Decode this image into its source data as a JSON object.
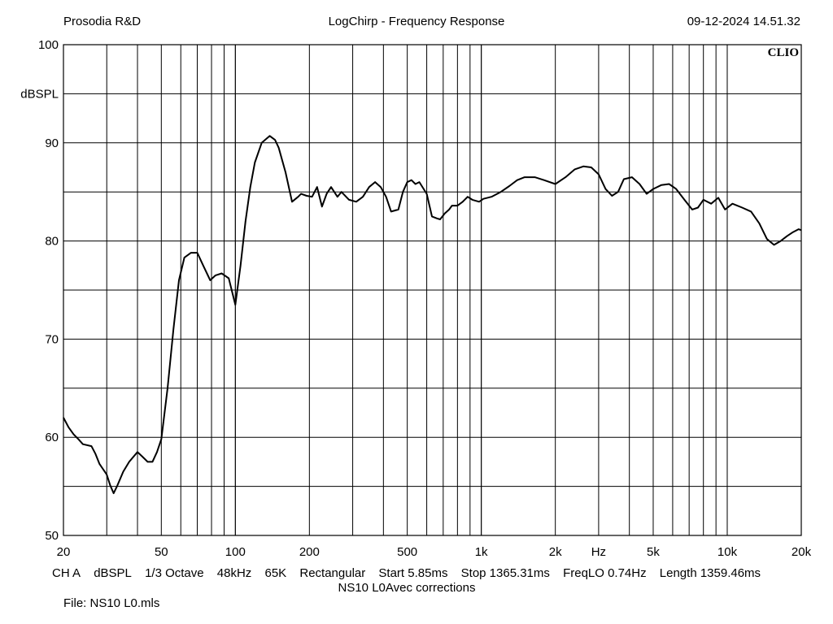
{
  "header": {
    "left": "Prosodia R&D",
    "center": "LogChirp - Frequency Response",
    "right": "09-12-2024 14.51.32"
  },
  "watermark": "CLIO",
  "settings": [
    "CH A",
    "dBSPL",
    "1/3 Octave",
    "48kHz",
    "65K",
    "Rectangular",
    "Start 5.85ms",
    "Stop 1365.31ms",
    "FreqLO 0.74Hz",
    "Length 1359.46ms"
  ],
  "note": "NS10 L0Avec corrections",
  "file": "File: NS10 L0.mls",
  "colors": {
    "grid": "#000000",
    "trace": "#000000",
    "background": "#ffffff"
  },
  "chart_data": {
    "type": "line",
    "title": "LogChirp - Frequency Response",
    "xlabel": "Hz",
    "ylabel": "dBSPL",
    "xscale": "log",
    "xlim": [
      20,
      20000
    ],
    "ylim": [
      50,
      100
    ],
    "grid": true,
    "xticks": [
      {
        "value": 20,
        "label": "20"
      },
      {
        "value": 50,
        "label": "50"
      },
      {
        "value": 100,
        "label": "100"
      },
      {
        "value": 200,
        "label": "200"
      },
      {
        "value": 500,
        "label": "500"
      },
      {
        "value": 1000,
        "label": "1k"
      },
      {
        "value": 2000,
        "label": "2k"
      },
      {
        "value": 5000,
        "label": "5k"
      },
      {
        "value": 10000,
        "label": "10k"
      },
      {
        "value": 20000,
        "label": "20k"
      }
    ],
    "x_unit_label": "Hz",
    "yticks": [
      {
        "value": 50,
        "label": "50"
      },
      {
        "value": 60,
        "label": "60"
      },
      {
        "value": 70,
        "label": "70"
      },
      {
        "value": 80,
        "label": "80"
      },
      {
        "value": 90,
        "label": "90"
      },
      {
        "value": 100,
        "label": "100"
      }
    ],
    "series": [
      {
        "x": [
          20,
          21,
          22,
          23,
          24,
          26,
          27,
          28,
          30,
          31,
          32,
          33,
          35,
          37,
          40,
          42,
          44,
          46,
          48,
          50,
          53,
          56,
          59,
          62,
          66,
          70,
          74,
          79,
          83,
          88,
          94,
          100,
          105,
          110,
          115,
          120,
          128,
          138,
          145,
          150,
          160,
          170,
          180,
          185,
          195,
          205,
          215,
          225,
          235,
          245,
          260,
          270,
          290,
          310,
          330,
          350,
          370,
          390,
          410,
          430,
          460,
          480,
          500,
          520,
          540,
          560,
          600,
          630,
          660,
          680,
          710,
          740,
          760,
          800,
          840,
          880,
          920,
          980,
          1020,
          1100,
          1200,
          1300,
          1400,
          1500,
          1650,
          1800,
          2000,
          2200,
          2400,
          2600,
          2800,
          3000,
          3200,
          3400,
          3600,
          3800,
          4100,
          4400,
          4700,
          5000,
          5400,
          5800,
          6200,
          6700,
          7200,
          7600,
          8000,
          8600,
          9200,
          9800,
          10500,
          11500,
          12500,
          13500,
          14500,
          15500,
          16500,
          17500,
          18500,
          19500,
          20000
        ],
        "y": [
          62,
          61,
          60.3,
          59.8,
          59.3,
          59.1,
          58.3,
          57.3,
          56.2,
          55.1,
          54.3,
          55,
          56.5,
          57.5,
          58.5,
          58,
          57.5,
          57.5,
          58.5,
          59.8,
          65,
          71,
          76,
          78.3,
          78.8,
          78.8,
          77.5,
          76,
          76.5,
          76.7,
          76.2,
          73.5,
          77.5,
          82,
          85.5,
          88,
          90,
          90.7,
          90.3,
          89.5,
          87,
          84,
          84.5,
          84.8,
          84.6,
          84.5,
          85.5,
          83.5,
          84.8,
          85.5,
          84.5,
          85,
          84.2,
          84,
          84.5,
          85.5,
          86,
          85.5,
          84.5,
          83,
          83.2,
          85,
          86,
          86.2,
          85.8,
          86,
          84.8,
          82.5,
          82.3,
          82.2,
          82.8,
          83.2,
          83.6,
          83.6,
          84,
          84.5,
          84.2,
          84,
          84.3,
          84.5,
          85,
          85.6,
          86.2,
          86.5,
          86.5,
          86.2,
          85.8,
          86.5,
          87.3,
          87.6,
          87.5,
          86.8,
          85.3,
          84.6,
          85,
          86.3,
          86.5,
          85.8,
          84.8,
          85.3,
          85.7,
          85.8,
          85.3,
          84.2,
          83.2,
          83.4,
          84.2,
          83.8,
          84.4,
          83.2,
          83.8,
          83.4,
          83,
          81.8,
          80.2,
          79.6,
          80,
          80.5,
          80.9,
          81.2,
          81.1
        ]
      }
    ]
  }
}
